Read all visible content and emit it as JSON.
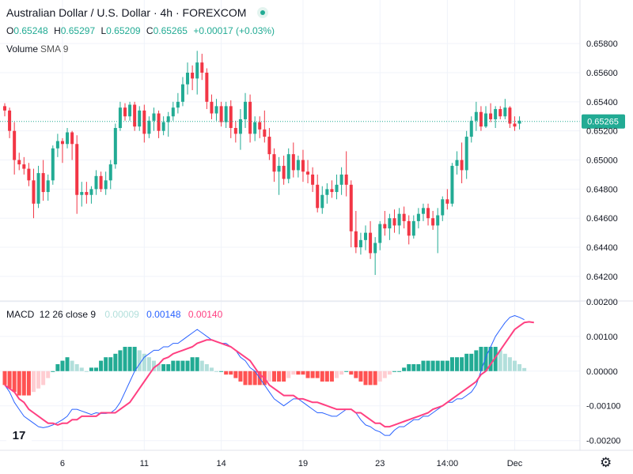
{
  "header": {
    "symbol_title": "Australian Dollar / U.S. Dollar · 4h · FOREXCOM",
    "ohlc": [
      {
        "label": "O",
        "value": "0.65248"
      },
      {
        "label": "H",
        "value": "0.65297"
      },
      {
        "label": "L",
        "value": "0.65209"
      },
      {
        "label": "C",
        "value": "0.65265"
      }
    ],
    "change": "+0.00017 (+0.03%)",
    "volume_label": "Volume",
    "volume_sma": "SMA 9"
  },
  "macd_legend": {
    "label": "MACD",
    "params": "12 26 close 9",
    "values": [
      "0.00009",
      "0.00148",
      "0.00140"
    ]
  },
  "colors": {
    "up": "#22ab94",
    "down": "#f23645",
    "macd_line": "#2962ff",
    "signal_line": "#ff4081",
    "hist_up_strong": "#22ab94",
    "hist_up_weak": "#b2dfdb",
    "hist_down_strong": "#ff5252",
    "hist_down_weak": "#ffcdd2",
    "grid": "#f0f3fa",
    "text": "#131722"
  },
  "chart_data": [
    {
      "type": "candlestick",
      "title": "Australian Dollar / U.S. Dollar · 4h · FOREXCOM",
      "y_tick_labels": [
        "0.65800",
        "0.65600",
        "0.65400",
        "0.65200",
        "0.65000",
        "0.64800",
        "0.64600",
        "0.64400",
        "0.64200"
      ],
      "y_ticks": [
        0.658,
        0.656,
        0.654,
        0.652,
        0.65,
        0.648,
        0.646,
        0.644,
        0.642
      ],
      "ylim": [
        0.6408,
        0.6598
      ],
      "x_tick_labels": [
        "6",
        "11",
        "14",
        "19",
        "23",
        "14:00",
        "Dec"
      ],
      "x_tick_bar_index": [
        12,
        29,
        45,
        62,
        78,
        92,
        106
      ],
      "last_price": 0.65265,
      "last_price_label": "0.65265",
      "candles": [
        [
          0.6537,
          0.6539,
          0.653,
          0.6534
        ],
        [
          0.6534,
          0.6536,
          0.6515,
          0.652
        ],
        [
          0.652,
          0.6526,
          0.649,
          0.65
        ],
        [
          0.65,
          0.6505,
          0.6493,
          0.6497
        ],
        [
          0.6497,
          0.6502,
          0.649,
          0.6494
        ],
        [
          0.6494,
          0.6498,
          0.6482,
          0.6486
        ],
        [
          0.6486,
          0.6494,
          0.646,
          0.647
        ],
        [
          0.647,
          0.6496,
          0.6467,
          0.6491
        ],
        [
          0.6491,
          0.65,
          0.6472,
          0.6478
        ],
        [
          0.6478,
          0.649,
          0.6472,
          0.6486
        ],
        [
          0.6486,
          0.651,
          0.6483,
          0.6508
        ],
        [
          0.6508,
          0.6518,
          0.6502,
          0.6513
        ],
        [
          0.6513,
          0.6515,
          0.6498,
          0.6511
        ],
        [
          0.6511,
          0.6522,
          0.6508,
          0.6519
        ],
        [
          0.6519,
          0.652,
          0.65,
          0.6511
        ],
        [
          0.6511,
          0.6517,
          0.6463,
          0.6476
        ],
        [
          0.6476,
          0.6485,
          0.6468,
          0.6478
        ],
        [
          0.6478,
          0.6485,
          0.647,
          0.6476
        ],
        [
          0.6476,
          0.6482,
          0.647,
          0.648
        ],
        [
          0.648,
          0.6493,
          0.6476,
          0.6489
        ],
        [
          0.6489,
          0.6492,
          0.6478,
          0.648
        ],
        [
          0.648,
          0.6492,
          0.6476,
          0.6486
        ],
        [
          0.6486,
          0.65,
          0.648,
          0.6497
        ],
        [
          0.6497,
          0.6525,
          0.6494,
          0.6522
        ],
        [
          0.6522,
          0.654,
          0.652,
          0.6536
        ],
        [
          0.6536,
          0.6539,
          0.6527,
          0.653
        ],
        [
          0.653,
          0.654,
          0.6527,
          0.6538
        ],
        [
          0.6538,
          0.654,
          0.652,
          0.6523
        ],
        [
          0.6523,
          0.6537,
          0.652,
          0.6534
        ],
        [
          0.6534,
          0.6538,
          0.6512,
          0.6518
        ],
        [
          0.6518,
          0.653,
          0.6515,
          0.6527
        ],
        [
          0.6527,
          0.6536,
          0.652,
          0.6532
        ],
        [
          0.6532,
          0.6534,
          0.6515,
          0.652
        ],
        [
          0.652,
          0.653,
          0.6517,
          0.6526
        ],
        [
          0.6526,
          0.6533,
          0.6516,
          0.653
        ],
        [
          0.653,
          0.654,
          0.6527,
          0.6536
        ],
        [
          0.6536,
          0.6546,
          0.6532,
          0.654
        ],
        [
          0.654,
          0.6557,
          0.6537,
          0.6552
        ],
        [
          0.6552,
          0.6567,
          0.6545,
          0.656
        ],
        [
          0.656,
          0.6565,
          0.6548,
          0.6556
        ],
        [
          0.6556,
          0.6575,
          0.6545,
          0.6567
        ],
        [
          0.6567,
          0.6573,
          0.6555,
          0.656
        ],
        [
          0.656,
          0.6563,
          0.6535,
          0.654
        ],
        [
          0.654,
          0.6545,
          0.6528,
          0.6532
        ],
        [
          0.6532,
          0.6542,
          0.6527,
          0.6537
        ],
        [
          0.6537,
          0.654,
          0.6523,
          0.6526
        ],
        [
          0.6526,
          0.654,
          0.6522,
          0.6537
        ],
        [
          0.6537,
          0.6541,
          0.6515,
          0.6522
        ],
        [
          0.6522,
          0.6527,
          0.6512,
          0.6518
        ],
        [
          0.6518,
          0.6535,
          0.6507,
          0.6528
        ],
        [
          0.6528,
          0.6546,
          0.6522,
          0.654
        ],
        [
          0.654,
          0.6545,
          0.6512,
          0.6518
        ],
        [
          0.6518,
          0.653,
          0.6513,
          0.6526
        ],
        [
          0.6526,
          0.653,
          0.6515,
          0.6521
        ],
        [
          0.6521,
          0.6534,
          0.6512,
          0.6516
        ],
        [
          0.6516,
          0.6522,
          0.65,
          0.6504
        ],
        [
          0.6504,
          0.6508,
          0.6485,
          0.6492
        ],
        [
          0.6492,
          0.6502,
          0.6476,
          0.6496
        ],
        [
          0.6496,
          0.6503,
          0.6483,
          0.6487
        ],
        [
          0.6487,
          0.6508,
          0.6484,
          0.6504
        ],
        [
          0.6504,
          0.6512,
          0.6488,
          0.6493
        ],
        [
          0.6493,
          0.6503,
          0.6488,
          0.65
        ],
        [
          0.65,
          0.6507,
          0.6485,
          0.6492
        ],
        [
          0.6492,
          0.65,
          0.6484,
          0.649
        ],
        [
          0.649,
          0.6495,
          0.6478,
          0.6483
        ],
        [
          0.6483,
          0.649,
          0.6464,
          0.6467
        ],
        [
          0.6467,
          0.6482,
          0.6463,
          0.6476
        ],
        [
          0.6476,
          0.6484,
          0.647,
          0.648
        ],
        [
          0.648,
          0.6486,
          0.6474,
          0.6478
        ],
        [
          0.6478,
          0.649,
          0.6473,
          0.6483
        ],
        [
          0.6483,
          0.6495,
          0.6476,
          0.649
        ],
        [
          0.649,
          0.6506,
          0.6475,
          0.6483
        ],
        [
          0.6483,
          0.6486,
          0.644,
          0.6451
        ],
        [
          0.6451,
          0.6465,
          0.6436,
          0.644
        ],
        [
          0.644,
          0.645,
          0.6435,
          0.6445
        ],
        [
          0.6445,
          0.6455,
          0.6438,
          0.645
        ],
        [
          0.645,
          0.6458,
          0.6432,
          0.6436
        ],
        [
          0.6436,
          0.6447,
          0.6421,
          0.6443
        ],
        [
          0.6443,
          0.6458,
          0.6438,
          0.6456
        ],
        [
          0.6456,
          0.6465,
          0.6448,
          0.6453
        ],
        [
          0.6453,
          0.6463,
          0.6445,
          0.646
        ],
        [
          0.646,
          0.6466,
          0.645,
          0.6455
        ],
        [
          0.6455,
          0.6467,
          0.6449,
          0.6463
        ],
        [
          0.6463,
          0.6468,
          0.6453,
          0.6458
        ],
        [
          0.6458,
          0.6462,
          0.6442,
          0.6448
        ],
        [
          0.6448,
          0.6462,
          0.6446,
          0.6458
        ],
        [
          0.6458,
          0.6467,
          0.6453,
          0.6463
        ],
        [
          0.6463,
          0.647,
          0.6458,
          0.6467
        ],
        [
          0.6467,
          0.647,
          0.6455,
          0.646
        ],
        [
          0.646,
          0.6465,
          0.6452,
          0.6455
        ],
        [
          0.6455,
          0.6467,
          0.6436,
          0.6462
        ],
        [
          0.6462,
          0.6475,
          0.6458,
          0.6473
        ],
        [
          0.6473,
          0.648,
          0.6466,
          0.647
        ],
        [
          0.647,
          0.6498,
          0.6468,
          0.6496
        ],
        [
          0.6496,
          0.6506,
          0.649,
          0.65
        ],
        [
          0.65,
          0.6512,
          0.6484,
          0.6493
        ],
        [
          0.6493,
          0.652,
          0.6487,
          0.6516
        ],
        [
          0.6516,
          0.653,
          0.6512,
          0.6527
        ],
        [
          0.6527,
          0.654,
          0.652,
          0.6533
        ],
        [
          0.6533,
          0.6537,
          0.652,
          0.6523
        ],
        [
          0.6523,
          0.6537,
          0.6522,
          0.6532
        ],
        [
          0.6532,
          0.6539,
          0.6526,
          0.6528
        ],
        [
          0.6528,
          0.6537,
          0.6522,
          0.6535
        ],
        [
          0.6535,
          0.6537,
          0.6528,
          0.653
        ],
        [
          0.653,
          0.6542,
          0.6528,
          0.6536
        ],
        [
          0.6536,
          0.6537,
          0.6522,
          0.6525
        ],
        [
          0.6525,
          0.653,
          0.652,
          0.6523
        ],
        [
          0.6525,
          0.653,
          0.6521,
          0.6527
        ]
      ]
    },
    {
      "type": "macd",
      "title": "MACD 12 26 close 9",
      "y_tick_labels": [
        "0.00200",
        "0.00100",
        "0.00000",
        "-0.00100",
        "-0.00200"
      ],
      "y_ticks": [
        0.002,
        0.001,
        0.0,
        -0.001,
        -0.002
      ],
      "ylim": [
        -0.00228,
        0.00202
      ],
      "macd_line": [
        -0.0004,
        -0.0006,
        -0.0009,
        -0.0011,
        -0.0013,
        -0.0014,
        -0.0015,
        -0.0016,
        -0.00163,
        -0.0016,
        -0.00155,
        -0.00148,
        -0.0014,
        -0.0013,
        -0.0011,
        -0.0011,
        -0.00115,
        -0.0012,
        -0.00125,
        -0.0012,
        -0.00122,
        -0.00122,
        -0.0012,
        -0.0011,
        -0.0009,
        -0.0006,
        -0.0003,
        0.0,
        0.0002,
        0.0004,
        0.0005,
        0.0006,
        0.0006,
        0.0007,
        0.0007,
        0.0008,
        0.0008,
        0.0009,
        0.001,
        0.0011,
        0.0012,
        0.0011,
        0.001,
        0.0009,
        0.00085,
        0.0008,
        0.0008,
        0.0007,
        0.0006,
        0.0004,
        0.0003,
        0.0001,
        0.0,
        -0.0002,
        -0.0004,
        -0.0006,
        -0.0008,
        -0.0009,
        -0.001,
        -0.0009,
        -0.0008,
        -0.0008,
        -0.0009,
        -0.001,
        -0.0011,
        -0.0012,
        -0.0012,
        -0.00125,
        -0.0013,
        -0.0013,
        -0.0012,
        -0.0011,
        -0.0011,
        -0.0012,
        -0.0014,
        -0.00155,
        -0.0016,
        -0.0017,
        -0.00175,
        -0.00185,
        -0.00185,
        -0.0017,
        -0.0016,
        -0.0016,
        -0.0015,
        -0.0014,
        -0.0014,
        -0.0013,
        -0.0013,
        -0.0012,
        -0.0011,
        -0.001,
        -0.0009,
        -0.0009,
        -0.0008,
        -0.0008,
        -0.0007,
        -0.0006,
        -0.0004,
        0.0,
        0.0004,
        0.0007,
        0.001,
        0.0012,
        0.0014,
        0.00155,
        0.0016,
        0.00155,
        0.00148
      ],
      "signal_line": [
        -0.0004,
        -0.0005,
        -0.0006,
        -0.0008,
        -0.0009,
        -0.0011,
        -0.0012,
        -0.0013,
        -0.0014,
        -0.0015,
        -0.0015,
        -0.00155,
        -0.0015,
        -0.0015,
        -0.0014,
        -0.0014,
        -0.0013,
        -0.0013,
        -0.0013,
        -0.0013,
        -0.0012,
        -0.0012,
        -0.0012,
        -0.0012,
        -0.0011,
        -0.001,
        -0.0009,
        -0.0007,
        -0.0005,
        -0.0003,
        -0.0001,
        0.0001,
        0.0002,
        0.00035,
        0.0004,
        0.0005,
        0.00055,
        0.0006,
        0.00065,
        0.0007,
        0.0008,
        0.00085,
        0.0009,
        0.0009,
        0.00085,
        0.0008,
        0.00075,
        0.0007,
        0.0006,
        0.0005,
        0.0004,
        0.0003,
        0.0001,
        -0.0001,
        -0.0002,
        -0.0004,
        -0.0005,
        -0.0006,
        -0.0007,
        -0.0007,
        -0.0007,
        -0.0008,
        -0.0008,
        -0.00085,
        -0.0009,
        -0.0009,
        -0.00095,
        -0.001,
        -0.00105,
        -0.0011,
        -0.0011,
        -0.0011,
        -0.0011,
        -0.0012,
        -0.0012,
        -0.0013,
        -0.0014,
        -0.0015,
        -0.0015,
        -0.0016,
        -0.0016,
        -0.00155,
        -0.0015,
        -0.00145,
        -0.0014,
        -0.00135,
        -0.0013,
        -0.00125,
        -0.0012,
        -0.0011,
        -0.00105,
        -0.001,
        -0.0009,
        -0.0008,
        -0.0007,
        -0.0006,
        -0.0005,
        -0.0004,
        -0.0003,
        -0.0001,
        0.0,
        0.0002,
        0.0004,
        0.0006,
        0.0008,
        0.001,
        0.0012,
        0.0013,
        0.0014,
        0.00142,
        0.0014
      ],
      "histogram": [
        -0.0004,
        -0.0005,
        -0.0006,
        -0.0007,
        -0.0007,
        -0.0007,
        -0.0006,
        -0.0005,
        -0.0004,
        -0.0002,
        0.0,
        0.0002,
        0.0003,
        0.0004,
        0.0003,
        0.0002,
        0.0001,
        0.0,
        0.0001,
        0.0001,
        0.0003,
        0.0004,
        0.0004,
        0.0005,
        0.0006,
        0.0007,
        0.0007,
        0.0007,
        0.0006,
        0.0005,
        0.0004,
        0.0003,
        0.0002,
        0.0002,
        0.0002,
        0.0003,
        0.0003,
        0.0003,
        0.0003,
        0.0004,
        0.0004,
        0.0003,
        0.0002,
        0.0001,
        0.0,
        0.0,
        -0.0001,
        -0.0001,
        -0.0002,
        -0.0003,
        -0.0004,
        -0.0004,
        -0.0004,
        -0.0004,
        -0.0004,
        -0.0003,
        -0.0003,
        -0.0003,
        -0.0003,
        -0.0002,
        -0.0001,
        -0.0001,
        -0.0001,
        -0.0002,
        -0.0002,
        -0.0002,
        -0.0003,
        -0.0003,
        -0.0003,
        -0.0002,
        -0.0001,
        0.0,
        -0.0001,
        -0.0002,
        -0.0003,
        -0.0004,
        -0.0004,
        -0.0004,
        -0.0003,
        -0.0002,
        -0.0001,
        0.0,
        0.0,
        0.0001,
        0.0002,
        0.0002,
        0.0002,
        0.0003,
        0.0003,
        0.0003,
        0.0003,
        0.0003,
        0.0003,
        0.0004,
        0.0004,
        0.0004,
        0.0005,
        0.0005,
        0.0006,
        0.0007,
        0.0007,
        0.0007,
        0.0007,
        0.0006,
        0.0005,
        0.0004,
        0.0003,
        0.0002,
        9e-05
      ]
    }
  ]
}
